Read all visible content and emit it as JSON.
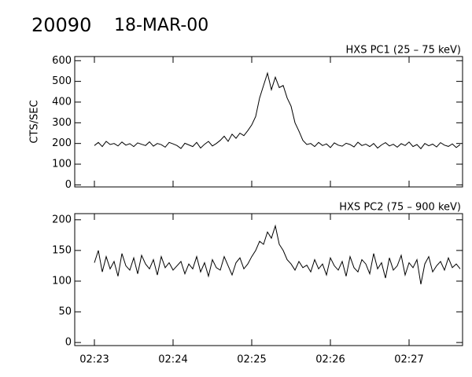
{
  "chart_data": [
    {
      "type": "line",
      "title": "20090",
      "subtitle": "18-MAR-00",
      "label": "HXS PC1 (25 – 75 keV)",
      "ylabel": "CTS/SEC",
      "color": "#000000",
      "x": [
        143,
        143.05,
        143.1,
        143.15,
        143.2,
        143.25,
        143.3,
        143.35,
        143.4,
        143.45,
        143.5,
        143.55,
        143.6,
        143.65,
        143.7,
        143.75,
        143.8,
        143.85,
        143.9,
        143.95,
        144,
        144.05,
        144.1,
        144.15,
        144.2,
        144.25,
        144.3,
        144.35,
        144.4,
        144.45,
        144.5,
        144.55,
        144.6,
        144.65,
        144.7,
        144.75,
        144.8,
        144.85,
        144.9,
        144.95,
        145,
        145.05,
        145.1,
        145.15,
        145.2,
        145.25,
        145.3,
        145.35,
        145.4,
        145.45,
        145.5,
        145.55,
        145.6,
        145.65,
        145.7,
        145.75,
        145.8,
        145.85,
        145.9,
        145.95,
        146,
        146.05,
        146.1,
        146.15,
        146.2,
        146.25,
        146.3,
        146.35,
        146.4,
        146.45,
        146.5,
        146.55,
        146.6,
        146.65,
        146.7,
        146.75,
        146.8,
        146.85,
        146.9,
        146.95,
        147,
        147.05,
        147.1,
        147.15,
        147.2,
        147.25,
        147.3,
        147.35,
        147.4,
        147.45,
        147.5,
        147.55,
        147.6,
        147.65
      ],
      "values": [
        190,
        205,
        185,
        210,
        195,
        200,
        188,
        207,
        192,
        199,
        185,
        203,
        196,
        190,
        208,
        187,
        200,
        194,
        182,
        205,
        198,
        190,
        176,
        201,
        193,
        185,
        205,
        178,
        196,
        210,
        188,
        200,
        215,
        235,
        210,
        245,
        225,
        250,
        238,
        262,
        290,
        330,
        420,
        480,
        540,
        460,
        520,
        470,
        480,
        420,
        380,
        300,
        260,
        215,
        195,
        200,
        185,
        205,
        190,
        198,
        180,
        203,
        192,
        187,
        201,
        195,
        183,
        206,
        190,
        197,
        185,
        200,
        178,
        193,
        204,
        188,
        196,
        182,
        199,
        190,
        207,
        185,
        195,
        175,
        200,
        189,
        197,
        183,
        204,
        192,
        186,
        198,
        180,
        195
      ],
      "xlim": [
        142.75,
        147.68
      ],
      "ylim": [
        -10,
        620
      ],
      "yticks": [
        0,
        100,
        200,
        300,
        400,
        500,
        600
      ]
    },
    {
      "type": "line",
      "label": "HXS PC2 (75 – 900 keV)",
      "color": "#000000",
      "x": [
        143,
        143.05,
        143.1,
        143.15,
        143.2,
        143.25,
        143.3,
        143.35,
        143.4,
        143.45,
        143.5,
        143.55,
        143.6,
        143.65,
        143.7,
        143.75,
        143.8,
        143.85,
        143.9,
        143.95,
        144,
        144.05,
        144.1,
        144.15,
        144.2,
        144.25,
        144.3,
        144.35,
        144.4,
        144.45,
        144.5,
        144.55,
        144.6,
        144.65,
        144.7,
        144.75,
        144.8,
        144.85,
        144.9,
        144.95,
        145,
        145.05,
        145.1,
        145.15,
        145.2,
        145.25,
        145.3,
        145.35,
        145.4,
        145.45,
        145.5,
        145.55,
        145.6,
        145.65,
        145.7,
        145.75,
        145.8,
        145.85,
        145.9,
        145.95,
        146,
        146.05,
        146.1,
        146.15,
        146.2,
        146.25,
        146.3,
        146.35,
        146.4,
        146.45,
        146.5,
        146.55,
        146.6,
        146.65,
        146.7,
        146.75,
        146.8,
        146.85,
        146.9,
        146.95,
        147,
        147.05,
        147.1,
        147.15,
        147.2,
        147.25,
        147.3,
        147.35,
        147.4,
        147.45,
        147.5,
        147.55,
        147.6,
        147.65
      ],
      "values": [
        130,
        150,
        115,
        140,
        120,
        132,
        108,
        145,
        125,
        118,
        138,
        112,
        142,
        128,
        120,
        135,
        110,
        140,
        122,
        130,
        118,
        125,
        132,
        112,
        128,
        120,
        140,
        115,
        130,
        108,
        135,
        122,
        118,
        140,
        125,
        110,
        130,
        138,
        120,
        128,
        140,
        150,
        165,
        160,
        180,
        170,
        190,
        160,
        150,
        135,
        128,
        118,
        132,
        122,
        126,
        115,
        135,
        120,
        128,
        110,
        138,
        125,
        118,
        132,
        108,
        140,
        122,
        115,
        135,
        128,
        112,
        145,
        120,
        130,
        105,
        138,
        118,
        125,
        142,
        110,
        130,
        122,
        135,
        95,
        128,
        140,
        115,
        125,
        132,
        118,
        138,
        122,
        128,
        120
      ],
      "xlim": [
        142.75,
        147.68
      ],
      "ylim": [
        -5,
        210
      ],
      "yticks": [
        0,
        50,
        100,
        150,
        200
      ],
      "xticks": [
        {
          "value": 143,
          "label": "02:23"
        },
        {
          "value": 144,
          "label": "02:24"
        },
        {
          "value": 145,
          "label": "02:25"
        },
        {
          "value": 146,
          "label": "02:26"
        },
        {
          "value": 147,
          "label": "02:27"
        }
      ]
    }
  ]
}
